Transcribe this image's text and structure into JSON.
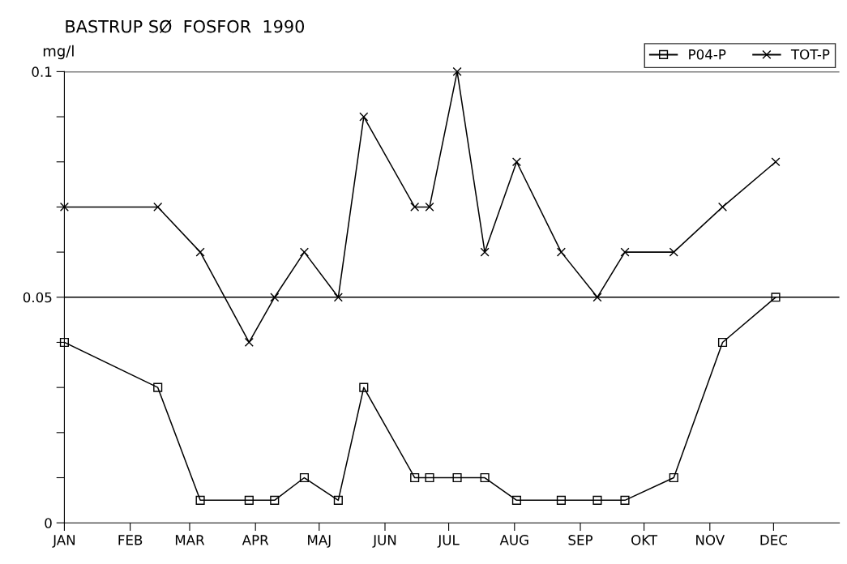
{
  "chart_data": {
    "type": "line",
    "title": "BASTRUP SØ  FOSFOR  1990",
    "ylabel": "mg/l",
    "xlim": [
      "1990-01-01",
      "1991-01-01"
    ],
    "xticks": [
      {
        "value": "1990-01-01",
        "label": "JAN"
      },
      {
        "value": "1990-02-01",
        "label": "FEB"
      },
      {
        "value": "1990-03-01",
        "label": "MAR"
      },
      {
        "value": "1990-04-01",
        "label": "APR"
      },
      {
        "value": "1990-05-01",
        "label": "MAJ"
      },
      {
        "value": "1990-06-01",
        "label": "JUN"
      },
      {
        "value": "1990-07-01",
        "label": "JUL"
      },
      {
        "value": "1990-08-01",
        "label": "AUG"
      },
      {
        "value": "1990-09-01",
        "label": "SEP"
      },
      {
        "value": "1990-10-01",
        "label": "OKT"
      },
      {
        "value": "1990-11-01",
        "label": "NOV"
      },
      {
        "value": "1990-12-01",
        "label": "DEC"
      }
    ],
    "ylim": [
      0,
      0.1
    ],
    "yticks": [
      0,
      {
        "value": 0.01,
        "label": null
      },
      {
        "value": 0.02,
        "label": null
      },
      {
        "value": 0.03,
        "label": null
      },
      {
        "value": 0.04,
        "label": null
      },
      0.05,
      {
        "value": 0.06,
        "label": null
      },
      {
        "value": 0.07,
        "label": null
      },
      {
        "value": 0.08,
        "label": null
      },
      {
        "value": 0.09,
        "label": null
      },
      0.1
    ],
    "grid": "y",
    "legend": "top right",
    "line_style": "solid",
    "series": [
      {
        "name": "P04-P",
        "color": "#000000",
        "marker": "square",
        "x": [
          "1990-01-01",
          "1990-02-14",
          "1990-03-06",
          "1990-03-29",
          "1990-04-10",
          "1990-04-24",
          "1990-05-10",
          "1990-05-22",
          "1990-06-15",
          "1990-06-22",
          "1990-07-05",
          "1990-07-18",
          "1990-08-02",
          "1990-08-23",
          "1990-09-09",
          "1990-09-22",
          "1990-10-15",
          "1990-11-07",
          "1990-12-02"
        ],
        "values": [
          0.04,
          0.03,
          0.005,
          0.005,
          0.005,
          0.01,
          0.005,
          0.03,
          0.01,
          0.01,
          0.01,
          0.01,
          0.005,
          0.005,
          0.005,
          0.005,
          0.01,
          0.04,
          0.05
        ]
      },
      {
        "name": "TOT-P",
        "color": "#000000",
        "marker": "cross",
        "x": [
          "1990-01-01",
          "1990-02-14",
          "1990-03-06",
          "1990-03-29",
          "1990-04-10",
          "1990-04-24",
          "1990-05-10",
          "1990-05-22",
          "1990-06-15",
          "1990-06-22",
          "1990-07-05",
          "1990-07-18",
          "1990-08-02",
          "1990-08-23",
          "1990-09-09",
          "1990-09-22",
          "1990-10-15",
          "1990-11-07",
          "1990-12-02"
        ],
        "values": [
          0.07,
          0.07,
          0.06,
          0.04,
          0.05,
          0.06,
          0.05,
          0.09,
          0.07,
          0.07,
          0.1,
          0.06,
          0.08,
          0.06,
          0.05,
          0.06,
          0.06,
          0.07,
          0.08
        ]
      }
    ]
  }
}
